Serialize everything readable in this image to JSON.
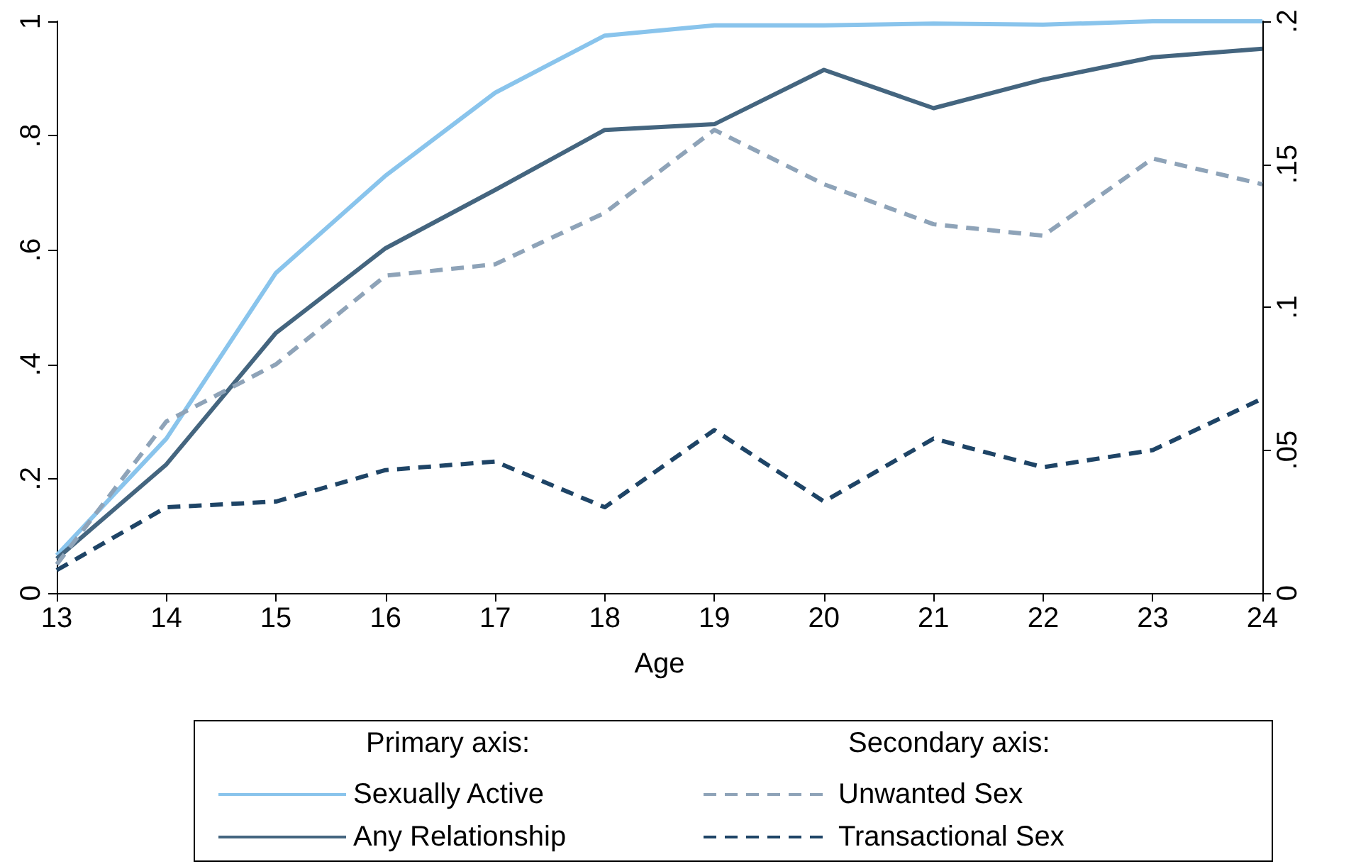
{
  "chart_data": {
    "type": "line",
    "xlabel": "Age",
    "x": [
      13,
      14,
      15,
      16,
      17,
      18,
      19,
      20,
      21,
      22,
      23,
      24
    ],
    "series": [
      {
        "name": "Sexually Active",
        "color": "#89c4ec",
        "line_style": "solid",
        "values": [
          0.066,
          0.27,
          0.56,
          0.73,
          0.875,
          0.975,
          0.993,
          0.993,
          0.996,
          0.994,
          1.0,
          1.0
        ]
      },
      {
        "name": "Any Relationship",
        "color": "#44657f",
        "line_style": "solid",
        "values": [
          0.06,
          0.225,
          0.455,
          0.603,
          0.705,
          0.81,
          0.82,
          0.915,
          0.848,
          0.898,
          0.937,
          0.952
        ]
      },
      {
        "name": "Unwanted Sex",
        "color": "#8ea3b8",
        "line_style": "dashed",
        "axis": "y2",
        "values": [
          0.01,
          0.06,
          0.08,
          0.111,
          0.115,
          0.133,
          0.162,
          0.143,
          0.129,
          0.125,
          0.152,
          0.143
        ]
      },
      {
        "name": "Transactional Sex",
        "color": "#1e4466",
        "line_style": "dashed",
        "axis": "y2",
        "values": [
          0.008,
          0.03,
          0.032,
          0.043,
          0.046,
          0.03,
          0.057,
          0.032,
          0.054,
          0.044,
          0.05,
          0.068
        ]
      }
    ],
    "xlim": [
      13,
      24
    ],
    "xticks": [
      13,
      14,
      15,
      16,
      17,
      18,
      19,
      20,
      21,
      22,
      23,
      24
    ],
    "ylim": [
      0,
      1
    ],
    "yticks": [
      0,
      {
        "value": 0.2,
        "label": ".2"
      },
      {
        "value": 0.4,
        "label": ".4"
      },
      {
        "value": 0.6,
        "label": ".6"
      },
      {
        "value": 0.8,
        "label": ".8"
      },
      1
    ],
    "y2lim": [
      0,
      0.2
    ],
    "y2ticks": [
      0,
      {
        "value": 0.05,
        "label": ".05"
      },
      {
        "value": 0.1,
        "label": ".1"
      },
      {
        "value": 0.15,
        "label": ".15"
      },
      {
        "value": 0.2,
        "label": ".2"
      }
    ],
    "annotations": [
      "Primary axis:",
      "Secondary axis:"
    ],
    "legend": "bottom",
    "grid": false,
    "marker": "none"
  }
}
